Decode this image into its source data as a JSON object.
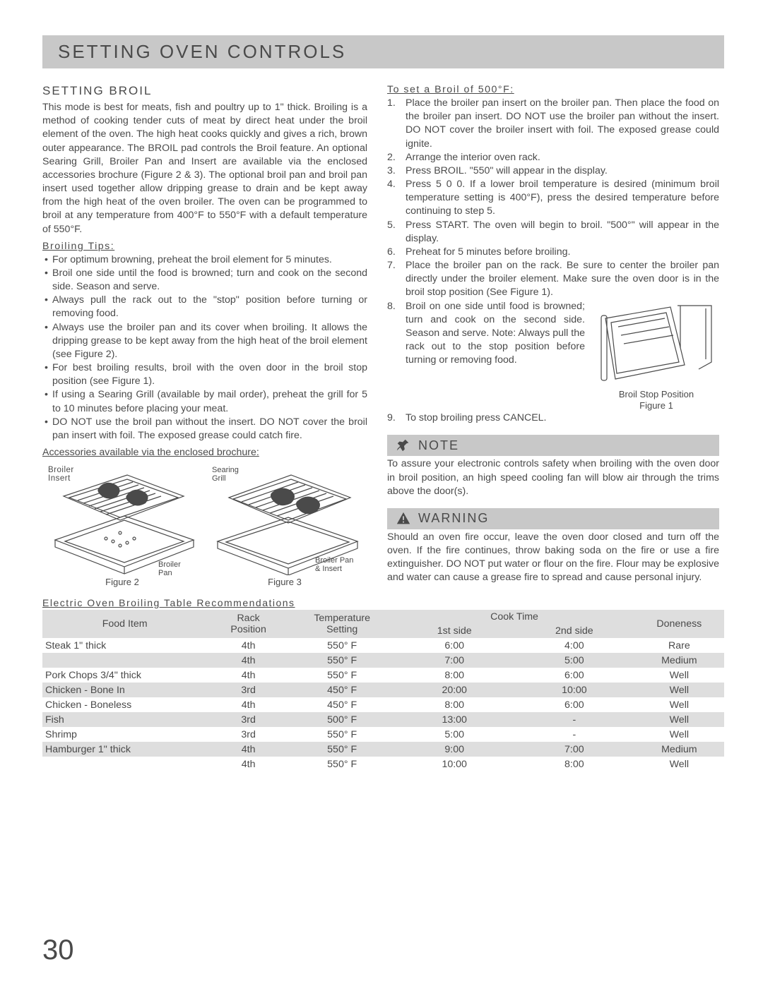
{
  "colors": {
    "header_bg": "#c8c8c8",
    "text": "#4a4a4a",
    "shade": "#dedede",
    "page_bg": "#ffffff"
  },
  "header": {
    "title": "SETTING OVEN CONTROLS"
  },
  "left": {
    "heading": "SETTING BROIL",
    "intro": "This mode is best for meats, fish and poultry up to 1\" thick. Broiling is a method of cooking tender cuts of meat by direct heat under the broil element of the oven. The high heat cooks quickly and gives a rich, brown outer appearance. The BROIL pad controls the Broil feature. An optional Searing Grill, Broiler Pan and Insert are available via the enclosed accessories brochure (Figure 2 & 3). The optional broil pan and broil pan insert used together allow dripping grease to drain and be kept away from the high heat of the oven broiler. The oven can be programmed to broil at any temperature from 400°F to 550°F with a default temperature of 550°F.",
    "tips_label": "Broiling Tips:",
    "tips": [
      "For optimum browning, preheat the broil element for 5 minutes.",
      "Broil one side until the food is browned; turn and cook on the second side. Season and serve.",
      "Always pull the rack out to the \"stop\" position before turning or removing food.",
      "Always use the broiler pan and its cover when broiling. It allows the dripping grease to be kept away from the high heat of the broil element (see Figure 2).",
      "For best broiling results, broil with the oven door in the broil stop position (see Figure 1).",
      "If using a Searing Grill (available by mail order), preheat the grill for 5 to 10 minutes before placing your meat.",
      "DO NOT use the broil pan without the insert. DO NOT cover the broil pan insert with foil. The exposed grease could catch fire."
    ],
    "accessories_label": "Accessories available via the enclosed brochure:",
    "fig2": {
      "caption": "Figure 2",
      "label_insert": "Broiler Insert",
      "label_pan": "Broiler Pan"
    },
    "fig3": {
      "caption": "Figure 3",
      "label_grill": "Searing Grill",
      "label_pan_insert": "Broiler Pan & Insert"
    }
  },
  "right": {
    "set_label": "To set a Broil of 500°F:",
    "steps": [
      "Place the broiler pan insert on the broiler pan. Then place the food on the broiler pan insert. DO NOT use the broiler pan without the insert. DO NOT cover the broiler insert with foil. The exposed grease could ignite.",
      "Arrange the interior oven rack.",
      "Press BROIL. \"550\" will appear in the display.",
      "Press 5 0 0. If a lower broil temperature is desired (minimum broil temperature setting is 400°F), press the desired temperature before continuing to step 5.",
      "Press START. The oven will begin to broil. \"500°\" will appear in the display.",
      "Preheat for 5 minutes before broiling.",
      "Place the broiler pan on the rack.  Be sure to center the broiler pan directly under the broiler element. Make sure the oven door is in the broil stop position (See Figure 1)."
    ],
    "step8_text": "Broil on one side until food is browned; turn and cook on the second side. Season and serve. Note: Always pull the rack out to the stop position before turning or removing food.",
    "step9": "To stop broiling press CANCEL.",
    "fig1": {
      "label": "Broil Stop Position",
      "caption": "Figure 1"
    },
    "note": {
      "title": "NOTE",
      "body": "To assure your electronic controls safety when broiling with the oven door in broil position, an high speed cooling fan will blow air through the trims above the door(s)."
    },
    "warning": {
      "title": "WARNING",
      "body": "Should an oven fire occur, leave the oven door closed and turn off the oven. If the fire continues, throw baking soda on the fire or use a fire extinguisher. DO NOT put water or flour on the fire. Flour may be explosive and water can cause a grease fire to spread and cause personal injury."
    }
  },
  "table": {
    "title": "Electric Oven Broiling Table Recommendations",
    "headers": {
      "food": "Food Item",
      "rack": "Rack Position",
      "temp": "Temperature Setting",
      "cook": "Cook Time",
      "side1": "1st side",
      "side2": "2nd side",
      "done": "Doneness"
    },
    "rows": [
      {
        "food": "Steak 1\" thick",
        "rack": "4th",
        "temp": "550° F",
        "s1": "6:00",
        "s2": "4:00",
        "done": "Rare",
        "shade": false
      },
      {
        "food": "",
        "rack": "4th",
        "temp": "550° F",
        "s1": "7:00",
        "s2": "5:00",
        "done": "Medium",
        "shade": true
      },
      {
        "food": "Pork Chops 3/4\" thick",
        "rack": "4th",
        "temp": "550° F",
        "s1": "8:00",
        "s2": "6:00",
        "done": "Well",
        "shade": false
      },
      {
        "food": "Chicken - Bone In",
        "rack": "3rd",
        "temp": "450° F",
        "s1": "20:00",
        "s2": "10:00",
        "done": "Well",
        "shade": true
      },
      {
        "food": "Chicken - Boneless",
        "rack": "4th",
        "temp": "450° F",
        "s1": "8:00",
        "s2": "6:00",
        "done": "Well",
        "shade": false
      },
      {
        "food": "Fish",
        "rack": "3rd",
        "temp": "500° F",
        "s1": "13:00",
        "s2": "-",
        "done": "Well",
        "shade": true
      },
      {
        "food": "Shrimp",
        "rack": "3rd",
        "temp": "550° F",
        "s1": "5:00",
        "s2": "-",
        "done": "Well",
        "shade": false
      },
      {
        "food": "Hamburger 1\" thick",
        "rack": "4th",
        "temp": "550° F",
        "s1": "9:00",
        "s2": "7:00",
        "done": "Medium",
        "shade": true
      },
      {
        "food": "",
        "rack": "4th",
        "temp": "550° F",
        "s1": "10:00",
        "s2": "8:00",
        "done": "Well",
        "shade": false
      }
    ]
  },
  "page_number": "30"
}
